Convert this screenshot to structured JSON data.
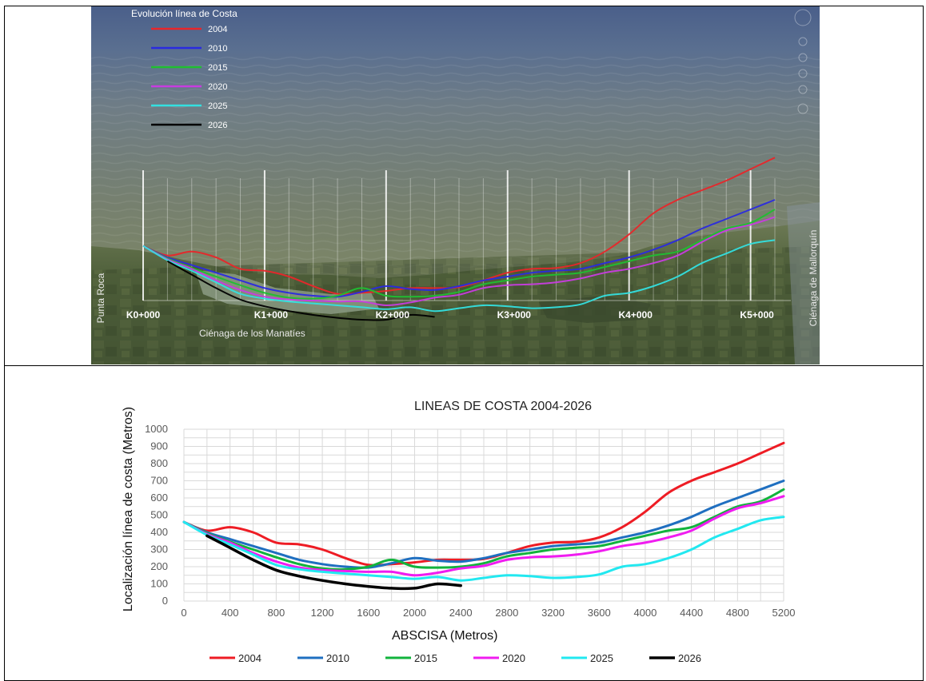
{
  "map": {
    "legend_title": "Evolución línea de Costa",
    "legend": [
      {
        "label": "2004",
        "color": "#e8262a"
      },
      {
        "label": "2010",
        "color": "#2a2ae0"
      },
      {
        "label": "2015",
        "color": "#1fbf30"
      },
      {
        "label": "2020",
        "color": "#c83ce0"
      },
      {
        "label": "2025",
        "color": "#33e0e0"
      },
      {
        "label": "2026",
        "color": "#000000"
      }
    ],
    "km_markers": [
      "K0+000",
      "K1+000",
      "K2+000",
      "K3+000",
      "K4+000",
      "K5+000"
    ],
    "places": {
      "left": "Punta Roca",
      "bottom": "Ciénaga de los Manatíes",
      "right": "Ciénaga de Mallorquín"
    }
  },
  "chart_data": {
    "type": "line",
    "title": "LINEAS DE COSTA 2004-2026",
    "xlabel": "ABSCISA (Metros)",
    "ylabel": "Localización línea de costa  (Metros)",
    "xlim": [
      0,
      5200
    ],
    "ylim": [
      0,
      1000
    ],
    "xticks": [
      0,
      400,
      800,
      1200,
      1600,
      2000,
      2400,
      2800,
      3200,
      3600,
      4000,
      4400,
      4800,
      5200
    ],
    "yticks": [
      0,
      100,
      200,
      300,
      400,
      500,
      600,
      700,
      800,
      900,
      1000
    ],
    "grid": true,
    "legend_position": "bottom",
    "series": [
      {
        "name": "2004",
        "color": "#ee1c24",
        "x": [
          0,
          200,
          400,
          600,
          800,
          1000,
          1200,
          1400,
          1600,
          1800,
          2000,
          2200,
          2400,
          2600,
          2800,
          3000,
          3200,
          3400,
          3600,
          3800,
          4000,
          4200,
          4400,
          4600,
          4800,
          5000,
          5200
        ],
        "y": [
          460,
          410,
          430,
          400,
          340,
          330,
          300,
          250,
          210,
          215,
          225,
          240,
          240,
          245,
          280,
          320,
          340,
          345,
          370,
          430,
          520,
          630,
          700,
          750,
          800,
          860,
          920
        ]
      },
      {
        "name": "2010",
        "color": "#1f6fc0",
        "x": [
          0,
          200,
          400,
          600,
          800,
          1000,
          1200,
          1400,
          1600,
          1800,
          2000,
          2200,
          2400,
          2600,
          2800,
          3000,
          3200,
          3400,
          3600,
          3800,
          4000,
          4200,
          4400,
          4600,
          4800,
          5000,
          5200
        ],
        "y": [
          460,
          400,
          360,
          320,
          280,
          240,
          215,
          200,
          195,
          220,
          250,
          235,
          230,
          250,
          280,
          300,
          320,
          330,
          340,
          370,
          400,
          440,
          490,
          550,
          600,
          650,
          700
        ]
      },
      {
        "name": "2015",
        "color": "#12b33c",
        "x": [
          0,
          200,
          400,
          600,
          800,
          1000,
          1200,
          1400,
          1600,
          1800,
          2000,
          2200,
          2400,
          2600,
          2800,
          3000,
          3200,
          3400,
          3600,
          3800,
          4000,
          4200,
          4400,
          4600,
          4800,
          5000,
          5200
        ],
        "y": [
          460,
          395,
          345,
          300,
          255,
          215,
          190,
          185,
          200,
          240,
          200,
          195,
          200,
          220,
          260,
          280,
          300,
          310,
          320,
          350,
          380,
          410,
          430,
          490,
          550,
          580,
          650
        ]
      },
      {
        "name": "2020",
        "color": "#f01cf0",
        "x": [
          0,
          200,
          400,
          600,
          800,
          1000,
          1200,
          1400,
          1600,
          1800,
          2000,
          2200,
          2400,
          2600,
          2800,
          3000,
          3200,
          3400,
          3600,
          3800,
          4000,
          4200,
          4400,
          4600,
          4800,
          5000,
          5200
        ],
        "y": [
          460,
          390,
          340,
          280,
          230,
          195,
          180,
          175,
          170,
          170,
          150,
          165,
          190,
          205,
          240,
          255,
          260,
          270,
          290,
          320,
          340,
          370,
          410,
          480,
          540,
          570,
          610
        ]
      },
      {
        "name": "2025",
        "color": "#22e8f0",
        "x": [
          0,
          200,
          400,
          600,
          800,
          1000,
          1200,
          1400,
          1600,
          1800,
          2000,
          2200,
          2400,
          2600,
          2800,
          3000,
          3200,
          3400,
          3600,
          3800,
          4000,
          4200,
          4400,
          4600,
          4800,
          5000,
          5200
        ],
        "y": [
          460,
          385,
          330,
          270,
          210,
          185,
          170,
          160,
          150,
          140,
          130,
          140,
          120,
          135,
          150,
          145,
          135,
          140,
          155,
          200,
          215,
          250,
          300,
          370,
          420,
          470,
          490
        ]
      },
      {
        "name": "2026",
        "color": "#000000",
        "x": [
          200,
          400,
          600,
          800,
          1000,
          1200,
          1400,
          1600,
          1800,
          2000,
          2200,
          2400
        ],
        "y": [
          380,
          310,
          240,
          180,
          145,
          120,
          100,
          85,
          75,
          75,
          100,
          90
        ]
      }
    ]
  }
}
